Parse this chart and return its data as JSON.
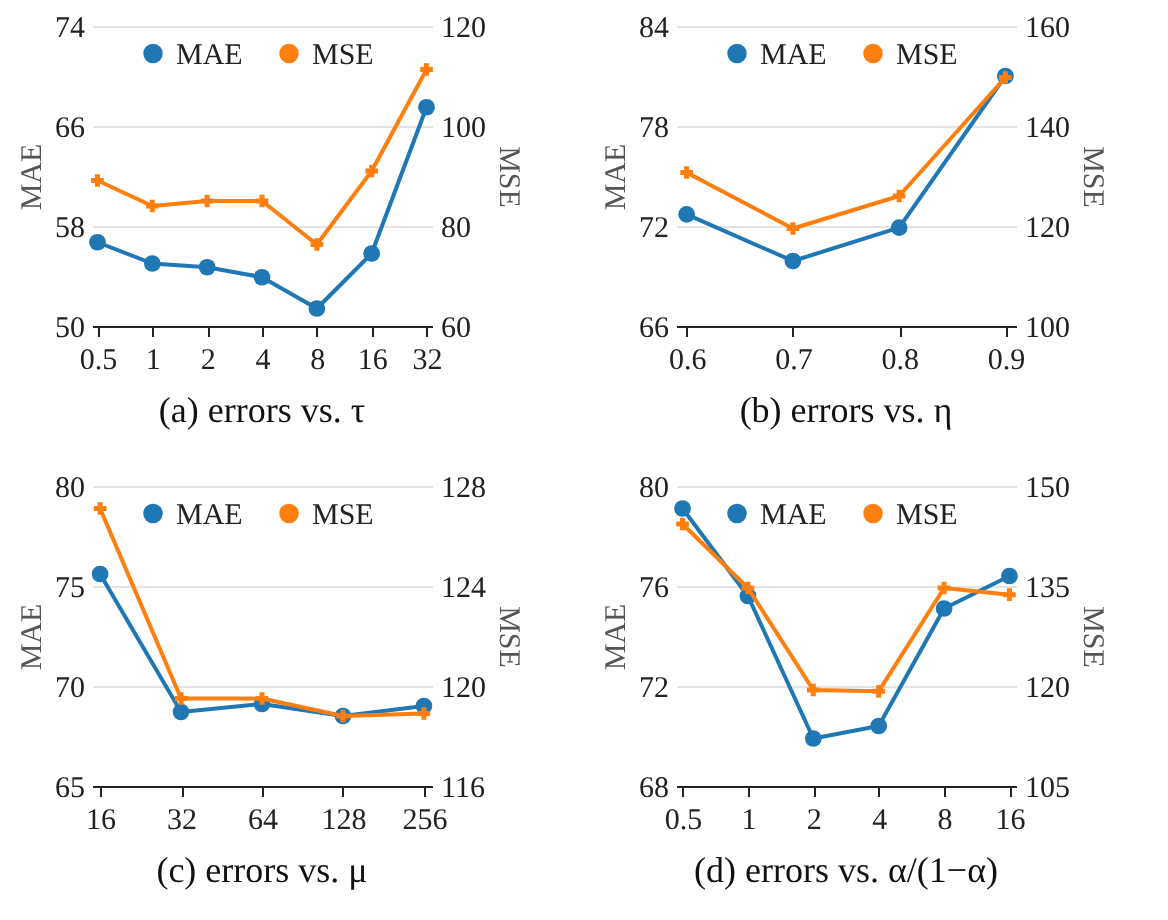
{
  "chart_data": [
    {
      "type": "line",
      "title": "(a) errors vs. τ",
      "categories": [
        "0.5",
        "1",
        "2",
        "4",
        "8",
        "16",
        "32"
      ],
      "ylabel": "MAE",
      "y2label": "MSE",
      "ylim": [
        50,
        74
      ],
      "yticks": [
        50,
        58,
        66,
        74
      ],
      "y2lim": [
        60,
        120
      ],
      "y2ticks": [
        60,
        80,
        100,
        120
      ],
      "grid": "y",
      "legend": "top",
      "series": [
        {
          "name": "MAE",
          "color": "#1f77b4",
          "marker": "circle",
          "values": [
            56.7,
            55.0,
            54.7,
            53.9,
            51.4,
            55.8,
            67.5
          ]
        },
        {
          "name": "MSE",
          "color": "#ff7f0e",
          "marker": "cross",
          "axis": "y2",
          "values": [
            89.1,
            84.0,
            85.0,
            85.0,
            76.3,
            91.0,
            111.3
          ]
        }
      ]
    },
    {
      "type": "line",
      "title": "(b) errors vs. η",
      "categories": [
        "0.6",
        "0.7",
        "0.8",
        "0.9"
      ],
      "ylabel": "MAE",
      "y2label": "MSE",
      "ylim": [
        66,
        84
      ],
      "yticks": [
        66,
        72,
        78,
        84
      ],
      "y2lim": [
        100,
        160
      ],
      "y2ticks": [
        100,
        120,
        140,
        160
      ],
      "grid": "y",
      "legend": "top",
      "series": [
        {
          "name": "MAE",
          "color": "#1f77b4",
          "marker": "circle",
          "values": [
            72.7,
            69.9,
            71.9,
            81.0
          ]
        },
        {
          "name": "MSE",
          "color": "#ff7f0e",
          "marker": "cross",
          "axis": "y2",
          "values": [
            130.7,
            119.5,
            126.0,
            149.7
          ]
        }
      ]
    },
    {
      "type": "line",
      "title": "(c) errors vs. μ",
      "categories": [
        "16",
        "32",
        "64",
        "128",
        "256"
      ],
      "ylabel": "MAE",
      "y2label": "MSE",
      "ylim": [
        65,
        80
      ],
      "yticks": [
        65,
        70,
        75,
        80
      ],
      "y2lim": [
        116,
        128
      ],
      "y2ticks": [
        116,
        120,
        124,
        128
      ],
      "grid": "y",
      "legend": "top",
      "series": [
        {
          "name": "MAE",
          "color": "#1f77b4",
          "marker": "circle",
          "values": [
            75.6,
            68.7,
            69.1,
            68.5,
            69.0
          ]
        },
        {
          "name": "MSE",
          "color": "#ff7f0e",
          "marker": "cross",
          "axis": "y2",
          "values": [
            127.1,
            119.5,
            119.5,
            118.8,
            118.9
          ]
        }
      ]
    },
    {
      "type": "line",
      "title": "(d) errors vs. α/(1−α)",
      "categories": [
        "0.5",
        "1",
        "2",
        "4",
        "8",
        "16"
      ],
      "ylabel": "MAE",
      "y2label": "MSE",
      "ylim": [
        68,
        80
      ],
      "yticks": [
        68,
        72,
        76,
        80
      ],
      "y2lim": [
        105,
        150
      ],
      "y2ticks": [
        105,
        120,
        135,
        150
      ],
      "grid": "y",
      "legend": "top",
      "series": [
        {
          "name": "MAE",
          "color": "#1f77b4",
          "marker": "circle",
          "values": [
            79.1,
            75.6,
            69.9,
            70.4,
            75.1,
            76.4
          ]
        },
        {
          "name": "MSE",
          "color": "#ff7f0e",
          "marker": "cross",
          "axis": "y2",
          "values": [
            144.3,
            134.7,
            119.4,
            119.2,
            134.7,
            133.7
          ]
        }
      ]
    }
  ]
}
